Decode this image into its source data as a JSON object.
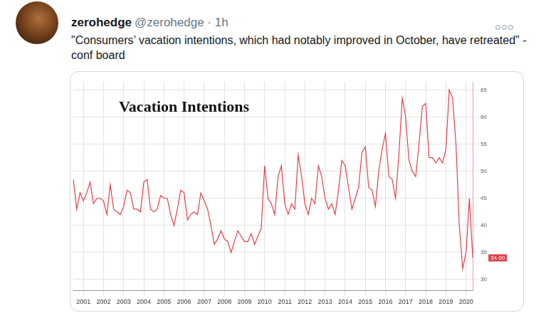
{
  "tweet": {
    "name": "zerohedge",
    "handle_line": "@zerohedge · 1h",
    "text": "\"Consumers’ vacation intentions, which had notably improved in October, have retreated\" - conf board"
  },
  "chart_data": {
    "type": "line",
    "title": "Vacation Intentions",
    "color": "#e0404a",
    "grid": true,
    "categories": [
      null,
      null,
      null,
      "2001",
      null,
      null,
      null,
      null,
      null,
      "2002",
      null,
      null,
      null,
      null,
      null,
      "2003",
      null,
      null,
      null,
      null,
      null,
      "2004",
      null,
      null,
      null,
      null,
      null,
      "2005",
      null,
      null,
      null,
      null,
      null,
      "2006",
      null,
      null,
      null,
      null,
      null,
      "2007",
      null,
      null,
      null,
      null,
      null,
      "2008",
      null,
      null,
      null,
      null,
      null,
      "2009",
      null,
      null,
      null,
      null,
      null,
      "2010",
      null,
      null,
      null,
      null,
      null,
      "2011",
      null,
      null,
      null,
      null,
      null,
      "2012",
      null,
      null,
      null,
      null,
      null,
      "2013",
      null,
      null,
      null,
      null,
      null,
      "2014",
      null,
      null,
      null,
      null,
      null,
      "2015",
      null,
      null,
      null,
      null,
      null,
      "2016",
      null,
      null,
      null,
      null,
      null,
      "2017",
      null,
      null,
      null,
      null,
      null,
      "2018",
      null,
      null,
      null,
      null,
      null,
      "2019",
      null,
      null,
      null,
      null,
      null,
      "2020",
      null,
      null
    ],
    "values": [
      48.5,
      43,
      46,
      44.5,
      46,
      48,
      44,
      45,
      45,
      44.5,
      42,
      47.5,
      43,
      42.5,
      42,
      43.5,
      46.5,
      46,
      43,
      43,
      42.5,
      48,
      48.5,
      43,
      42.5,
      43,
      45.5,
      45,
      45,
      42,
      40,
      43,
      46.5,
      46,
      41,
      42,
      42.5,
      42,
      46,
      44.5,
      43,
      40,
      36.5,
      37.5,
      39,
      37.5,
      37,
      35,
      37,
      39,
      38,
      37,
      37,
      38.5,
      36.5,
      38,
      39.5,
      51,
      45,
      44,
      42,
      49,
      51,
      44,
      42,
      44,
      43,
      53,
      49,
      44,
      42,
      45,
      44,
      51,
      49,
      45,
      43,
      44,
      42,
      46.5,
      52,
      51,
      47,
      43,
      45,
      47,
      53.5,
      54.5,
      47,
      46.5,
      43.5,
      50,
      54,
      57,
      49,
      48.5,
      45,
      53,
      63.5,
      60,
      52,
      50,
      49,
      55,
      62,
      62.5,
      52.5,
      52.5,
      51.5,
      52.5,
      51.5,
      54,
      65,
      63.5,
      55,
      40,
      32,
      35,
      45,
      34
    ],
    "ylim": [
      28,
      66.5
    ],
    "yticks": [
      30,
      35,
      40,
      45,
      50,
      55,
      60,
      65
    ],
    "annotations": [
      {
        "value": 34,
        "label": "34.00"
      }
    ]
  }
}
